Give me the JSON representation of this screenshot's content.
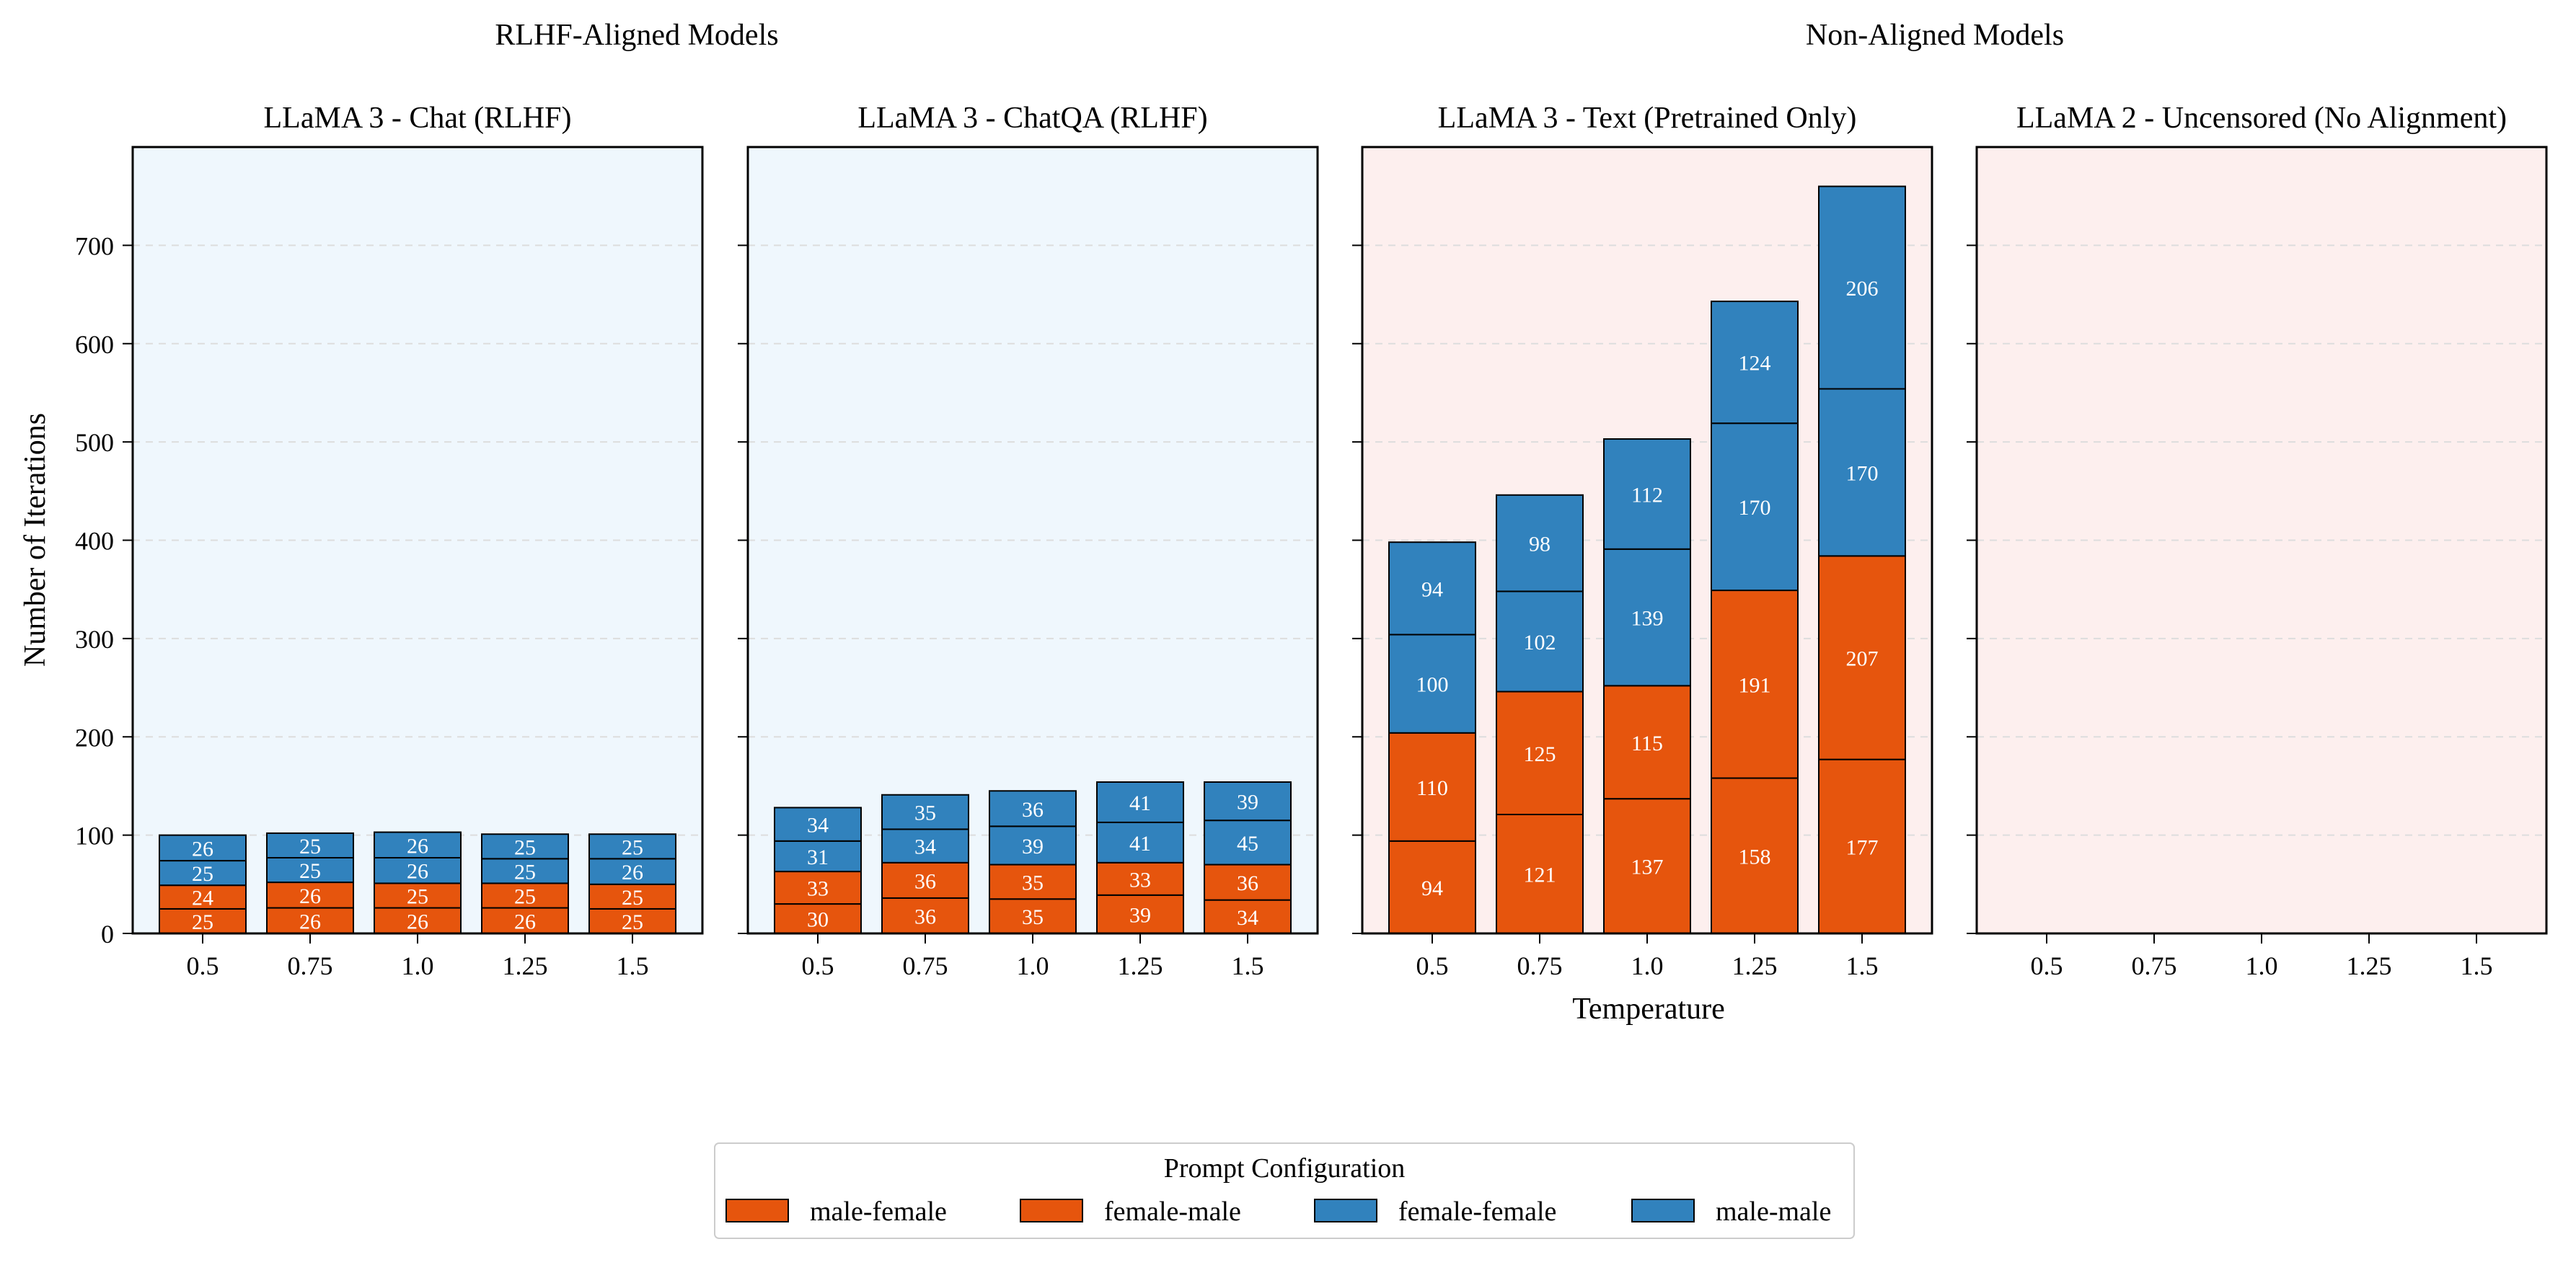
{
  "group_titles": [
    "RLHF-Aligned Models",
    "Non-Aligned Models"
  ],
  "x_label": "Temperature",
  "y_label": "Number of Iterations",
  "colors": {
    "male-female": "#e6550d",
    "female-male": "#e6550d",
    "female-female": "#3182bd",
    "male-male": "#3182bd",
    "bg_aligned": "#eff7fd",
    "bg_nonaligned": "#fdefee",
    "grid": "#dddddd"
  },
  "legend": {
    "title": "Prompt Configuration",
    "entries": [
      "male-female",
      "female-male",
      "female-female",
      "male-male"
    ]
  },
  "chart_data": [
    {
      "type": "bar",
      "title": "LLaMA 3 - Chat (RLHF)",
      "group": "RLHF-Aligned Models",
      "categories": [
        "0.5",
        "0.75",
        "1.0",
        "1.25",
        "1.5"
      ],
      "series": [
        {
          "name": "male-female",
          "values": [
            25,
            26,
            26,
            26,
            25
          ]
        },
        {
          "name": "female-male",
          "values": [
            24,
            26,
            25,
            25,
            25
          ]
        },
        {
          "name": "female-female",
          "values": [
            25,
            25,
            26,
            25,
            26
          ]
        },
        {
          "name": "male-male",
          "values": [
            26,
            25,
            26,
            25,
            25
          ]
        }
      ],
      "ylim": [
        0,
        800
      ],
      "yticks": [
        0,
        100,
        200,
        300,
        400,
        500,
        600,
        700
      ],
      "grid": true
    },
    {
      "type": "bar",
      "title": "LLaMA 3 - ChatQA (RLHF)",
      "group": "RLHF-Aligned Models",
      "categories": [
        "0.5",
        "0.75",
        "1.0",
        "1.25",
        "1.5"
      ],
      "series": [
        {
          "name": "male-female",
          "values": [
            30,
            36,
            35,
            39,
            34
          ]
        },
        {
          "name": "female-male",
          "values": [
            33,
            36,
            35,
            33,
            36
          ]
        },
        {
          "name": "female-female",
          "values": [
            31,
            34,
            39,
            41,
            45
          ]
        },
        {
          "name": "male-male",
          "values": [
            34,
            35,
            36,
            41,
            39
          ]
        }
      ],
      "ylim": [
        0,
        800
      ],
      "grid": true
    },
    {
      "type": "bar",
      "title": "LLaMA 3 - Text (Pretrained Only)",
      "group": "Non-Aligned Models",
      "categories": [
        "0.5",
        "0.75",
        "1.0",
        "1.25",
        "1.5"
      ],
      "series": [
        {
          "name": "male-female",
          "values": [
            94,
            121,
            137,
            158,
            177
          ]
        },
        {
          "name": "female-male",
          "values": [
            110,
            125,
            115,
            191,
            207
          ]
        },
        {
          "name": "female-female",
          "values": [
            100,
            102,
            139,
            170,
            170
          ]
        },
        {
          "name": "male-male",
          "values": [
            94,
            98,
            112,
            124,
            206
          ]
        }
      ],
      "ylim": [
        0,
        800
      ],
      "grid": true
    },
    {
      "type": "bar",
      "title": "LLaMA 2 - Uncensored (No Alignment)",
      "group": "Non-Aligned Models",
      "categories": [
        "0.5",
        "0.75",
        "1.0",
        "1.25",
        "1.5"
      ],
      "series": [
        {
          "name": "male-female",
          "values": [
            0,
            0,
            0,
            0,
            0
          ]
        },
        {
          "name": "female-male",
          "values": [
            0,
            0,
            0,
            0,
            0
          ]
        },
        {
          "name": "female-female",
          "values": [
            0,
            0,
            0,
            0,
            0
          ]
        },
        {
          "name": "male-male",
          "values": [
            0,
            0,
            0,
            0,
            0
          ]
        }
      ],
      "ylim": [
        0,
        800
      ],
      "grid": true
    }
  ]
}
